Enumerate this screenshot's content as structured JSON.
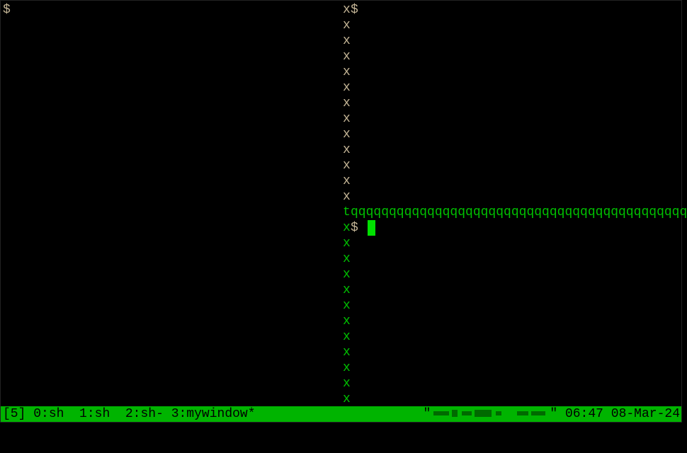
{
  "panes": {
    "left_prompt": "$",
    "top_right_prompt": "$",
    "bottom_right_prompt": "$"
  },
  "borders": {
    "vertical_char": "x",
    "tee_char": "t",
    "horizontal_line": "qqqqqqqqqqqqqqqqqqqqqqqqqqqqqqqqqqqqqqqqqqqq"
  },
  "status_bar": {
    "session": "[5]",
    "windows": [
      {
        "label": "0:sh"
      },
      {
        "label": "1:sh"
      },
      {
        "label": "2:sh-"
      },
      {
        "label": "3:mywindow*"
      }
    ],
    "time": "06:47",
    "date": "08-Mar-24",
    "colors": {
      "background": "#00b400",
      "text": "#000000"
    }
  },
  "colors": {
    "inactive_border": "#c4b596",
    "active_border": "#00c000",
    "cursor": "#00e000"
  }
}
